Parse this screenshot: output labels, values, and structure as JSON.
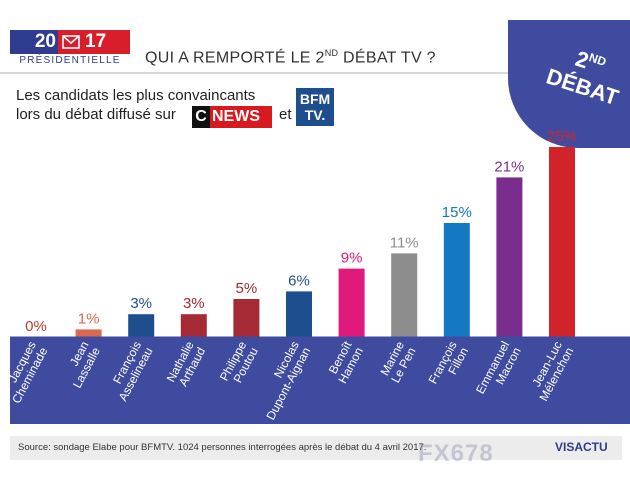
{
  "logo": {
    "year_left": "20",
    "year_right": "17",
    "label": "PRÉSIDENTIELLE"
  },
  "header": {
    "title_pre": "QUI A REMPORTÉ LE 2",
    "title_sup": "ND",
    "title_post": " DÉBAT TV ?"
  },
  "badge": {
    "line1": "2",
    "line1_sup": "ND",
    "line2": "DÉBAT"
  },
  "subtitle": {
    "line1": "Les candidats les plus convaincants",
    "line2": "lors du débat diffusé sur",
    "cnews_c": "C",
    "cnews_text": "NEWS",
    "et": "et",
    "bfm_line1": "BFM",
    "bfm_line2": "TV."
  },
  "chart_data": {
    "type": "bar",
    "title": "Les candidats les plus convaincants lors du débat diffusé sur CNEWS et BFMTV",
    "categories": [
      "Jacques Cheminade",
      "Jean Lassalle",
      "François Asselineau",
      "Nathalie Arthaud",
      "Philippe Poutou",
      "Nicolas Dupont-Aignan",
      "Benoît Hamon",
      "Marine Le Pen",
      "François Fillon",
      "Emmanuel Macron",
      "Jean-Luc Mélenchon"
    ],
    "category_lines": [
      [
        "Jacques",
        "Cheminade"
      ],
      [
        "Jean",
        "Lassalle"
      ],
      [
        "François",
        "Asselineau"
      ],
      [
        "Nathalie",
        "Arthaud"
      ],
      [
        "Philippe",
        "Poutou"
      ],
      [
        "Nicolas",
        "Dupont-Aignan"
      ],
      [
        "Benoît",
        "Hamon"
      ],
      [
        "Marine",
        "Le Pen"
      ],
      [
        "François",
        "Fillon"
      ],
      [
        "Emmanuel",
        "Macron"
      ],
      [
        "Jean-Luc",
        "Mélenchon"
      ]
    ],
    "values": [
      0,
      1,
      3,
      3,
      5,
      6,
      9,
      11,
      15,
      21,
      25
    ],
    "value_labels": [
      "0%",
      "1%",
      "3%",
      "3%",
      "5%",
      "6%",
      "9%",
      "11%",
      "15%",
      "21%",
      "25%"
    ],
    "colors": [
      "#c0392b",
      "#d9694f",
      "#1f4e8f",
      "#a52a36",
      "#a52a36",
      "#1f4e8f",
      "#e0197d",
      "#8c8c8c",
      "#1578c2",
      "#7a2d8c",
      "#d2232a"
    ],
    "label_colors": [
      "#c0392b",
      "#d9694f",
      "#1f4e8f",
      "#a52a36",
      "#a52a36",
      "#1f4e8f",
      "#e0197d",
      "#8c8c8c",
      "#1578c2",
      "#7a2d8c",
      "#d2232a"
    ],
    "ylim": [
      0,
      25
    ],
    "grid": false
  },
  "footer": {
    "source": "Source: sondage Elabe pour BFMTV. 1024 personnes interrogées après le débat du 4 avril 2017.",
    "brand": "VISACTU"
  },
  "watermark": "FX678"
}
